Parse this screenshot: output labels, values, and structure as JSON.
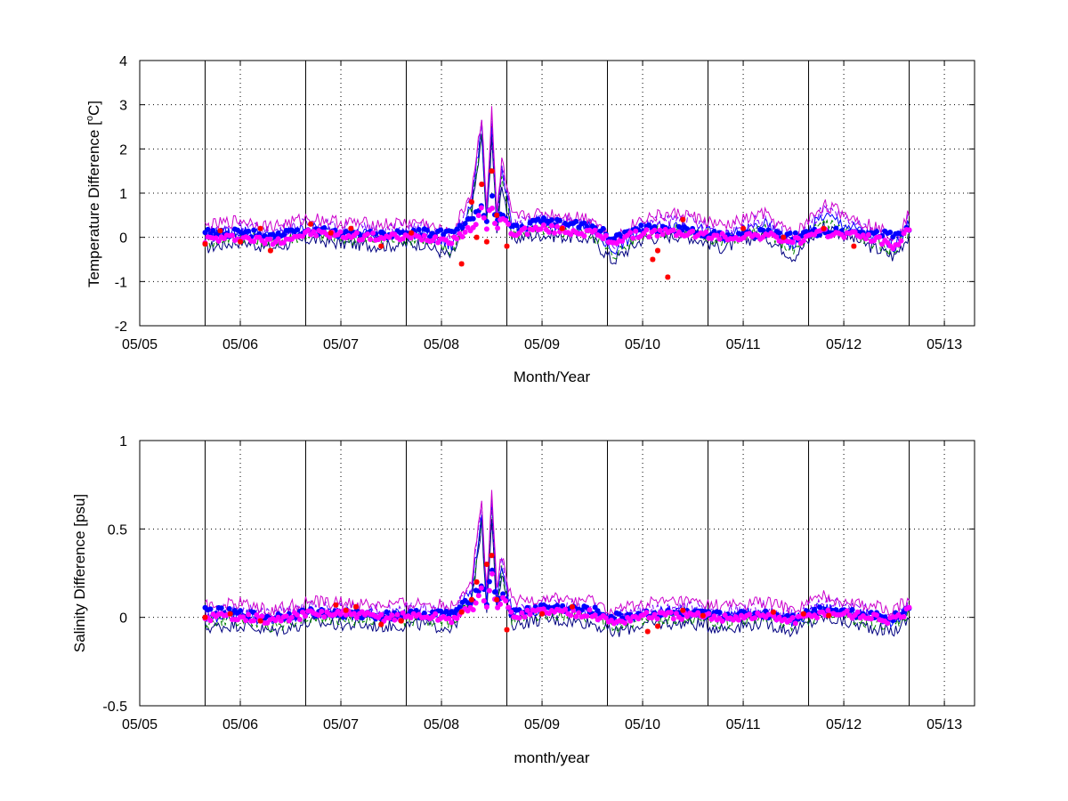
{
  "chart_data": [
    {
      "type": "line",
      "title": "",
      "xlabel": "Month/Year",
      "ylabel": "Temperature Difference [",
      "ylabel_unit_sup": "o",
      "ylabel_unit_tail": "C]",
      "x_tick_labels": [
        "05/05",
        "05/06",
        "05/07",
        "05/08",
        "05/09",
        "05/10",
        "05/11",
        "05/12",
        "05/13"
      ],
      "y_tick_labels": [
        "4",
        "3",
        "2",
        "1",
        "0",
        "-1",
        "-2"
      ],
      "y_ticks": [
        4,
        3,
        2,
        1,
        0,
        -1,
        -2
      ],
      "xlim": [
        2005.0,
        2013.3
      ],
      "ylim": [
        -2,
        4
      ],
      "grid": "dotted",
      "vertical_markers_year": [
        2005.65,
        2006.65,
        2007.65,
        2008.65,
        2009.65,
        2010.65,
        2011.65,
        2012.65
      ],
      "data_range_year": [
        2005.65,
        2012.65
      ],
      "series": [
        {
          "style": "thin-lines",
          "colors": [
            "#000080",
            "#008000",
            "#0000ff",
            "#7f00ff",
            "#cc00cc"
          ],
          "x_year": [
            2005.65,
            2006.0,
            2006.3,
            2006.7,
            2007.0,
            2007.4,
            2007.8,
            2008.1,
            2008.3,
            2008.4,
            2008.45,
            2008.5,
            2008.55,
            2008.6,
            2008.7,
            2009.0,
            2009.5,
            2009.7,
            2010.0,
            2010.4,
            2010.8,
            2011.2,
            2011.5,
            2011.8,
            2012.2,
            2012.5,
            2012.65
          ],
          "y": [
            0.0,
            0.15,
            0.0,
            0.2,
            0.1,
            0.05,
            0.1,
            -0.2,
            0.8,
            2.5,
            0.5,
            2.6,
            0.3,
            1.5,
            0.2,
            0.3,
            0.2,
            -0.3,
            0.2,
            0.3,
            0.0,
            0.3,
            -0.2,
            0.5,
            0.1,
            -0.2,
            0.3
          ]
        },
        {
          "style": "blue-markers",
          "color": "#0000ff",
          "x_year": [
            2005.65,
            2006.0,
            2006.3,
            2006.7,
            2007.0,
            2007.4,
            2007.8,
            2008.1,
            2008.3,
            2008.4,
            2008.45,
            2008.5,
            2008.55,
            2008.6,
            2008.7,
            2009.0,
            2009.5,
            2009.7,
            2010.0,
            2010.4,
            2010.8,
            2011.2,
            2011.5,
            2011.8,
            2012.2,
            2012.5,
            2012.65
          ],
          "y": [
            0.1,
            0.1,
            0.05,
            0.15,
            0.1,
            0.05,
            0.1,
            0.1,
            0.4,
            0.8,
            0.3,
            0.9,
            0.3,
            0.6,
            0.2,
            0.35,
            0.25,
            0.0,
            0.2,
            0.15,
            0.05,
            0.1,
            0.0,
            0.15,
            0.1,
            0.05,
            0.2
          ]
        },
        {
          "style": "magenta-markers",
          "color": "#ff00ff",
          "x_year": [
            2005.65,
            2006.0,
            2006.3,
            2006.7,
            2007.0,
            2007.4,
            2007.8,
            2008.1,
            2008.3,
            2008.4,
            2008.45,
            2008.5,
            2008.55,
            2008.6,
            2008.7,
            2009.0,
            2009.5,
            2009.7,
            2010.0,
            2010.4,
            2010.8,
            2011.2,
            2011.5,
            2011.8,
            2012.2,
            2012.5,
            2012.65
          ],
          "y": [
            -0.05,
            0.0,
            -0.1,
            0.1,
            0.05,
            0.0,
            0.0,
            -0.05,
            0.2,
            0.6,
            0.2,
            0.8,
            0.1,
            0.5,
            0.1,
            0.2,
            0.1,
            -0.1,
            0.1,
            0.1,
            0.0,
            0.05,
            -0.1,
            0.1,
            0.05,
            -0.2,
            0.15
          ]
        },
        {
          "style": "red-asterisks",
          "color": "#ff0000",
          "x_year": [
            2005.65,
            2005.8,
            2006.0,
            2006.2,
            2006.3,
            2006.7,
            2006.9,
            2007.1,
            2007.4,
            2007.7,
            2008.2,
            2008.3,
            2008.35,
            2008.4,
            2008.45,
            2008.5,
            2008.55,
            2008.65,
            2009.2,
            2010.1,
            2010.15,
            2010.25,
            2010.4,
            2011.0,
            2011.4,
            2011.8,
            2012.1
          ],
          "y": [
            -0.15,
            0.15,
            -0.1,
            0.2,
            -0.3,
            0.3,
            0.1,
            0.2,
            -0.2,
            0.1,
            -0.6,
            0.8,
            0.0,
            1.2,
            -0.1,
            1.5,
            0.5,
            -0.2,
            0.2,
            -0.5,
            -0.3,
            -0.9,
            0.4,
            0.2,
            0.0,
            0.2,
            -0.2
          ]
        }
      ]
    },
    {
      "type": "line",
      "title": "",
      "xlabel": "month/year",
      "ylabel": "Salinity Difference [psu]",
      "x_tick_labels": [
        "05/05",
        "05/06",
        "05/07",
        "05/08",
        "05/09",
        "05/10",
        "05/11",
        "05/12",
        "05/13"
      ],
      "y_tick_labels": [
        "1",
        "0.5",
        "0",
        "-0.5"
      ],
      "y_ticks": [
        1,
        0.5,
        0,
        -0.5
      ],
      "xlim": [
        2005.0,
        2013.3
      ],
      "ylim": [
        -0.5,
        1
      ],
      "grid": "dotted",
      "vertical_markers_year": [
        2005.65,
        2006.65,
        2007.65,
        2008.65,
        2009.65,
        2010.65,
        2011.65,
        2012.65
      ],
      "data_range_year": [
        2005.65,
        2012.65
      ],
      "series": [
        {
          "style": "thin-lines",
          "colors": [
            "#000080",
            "#008000",
            "#0000ff",
            "#7f00ff",
            "#cc00cc"
          ],
          "x_year": [
            2005.65,
            2006.0,
            2006.3,
            2006.7,
            2007.0,
            2007.4,
            2007.8,
            2008.1,
            2008.3,
            2008.4,
            2008.45,
            2008.5,
            2008.55,
            2008.6,
            2008.7,
            2009.0,
            2009.5,
            2009.7,
            2010.0,
            2010.4,
            2010.8,
            2011.2,
            2011.5,
            2011.8,
            2012.2,
            2012.5,
            2012.65
          ],
          "y": [
            0.0,
            0.02,
            -0.02,
            0.03,
            0.02,
            0.01,
            0.02,
            0.0,
            0.15,
            0.6,
            0.1,
            0.65,
            0.1,
            0.3,
            0.02,
            0.05,
            0.03,
            -0.03,
            0.02,
            0.03,
            0.0,
            0.03,
            -0.02,
            0.06,
            0.01,
            -0.02,
            0.05
          ]
        },
        {
          "style": "blue-markers",
          "color": "#0000ff",
          "x_year": [
            2005.65,
            2006.0,
            2006.3,
            2006.7,
            2007.0,
            2007.4,
            2007.8,
            2008.1,
            2008.3,
            2008.4,
            2008.45,
            2008.5,
            2008.55,
            2008.6,
            2008.7,
            2009.0,
            2009.5,
            2009.7,
            2010.0,
            2010.4,
            2010.8,
            2011.2,
            2011.5,
            2011.8,
            2012.2,
            2012.5,
            2012.65
          ],
          "y": [
            0.04,
            0.02,
            0.0,
            0.03,
            0.02,
            0.01,
            0.02,
            0.02,
            0.1,
            0.2,
            0.08,
            0.3,
            0.06,
            0.15,
            0.02,
            0.06,
            0.04,
            0.0,
            0.02,
            0.02,
            0.01,
            0.02,
            0.0,
            0.05,
            0.02,
            0.0,
            0.05
          ]
        },
        {
          "style": "magenta-markers",
          "color": "#ff00ff",
          "x_year": [
            2005.65,
            2006.0,
            2006.3,
            2006.7,
            2007.0,
            2007.4,
            2007.8,
            2008.1,
            2008.3,
            2008.4,
            2008.45,
            2008.5,
            2008.55,
            2008.6,
            2008.7,
            2009.0,
            2009.5,
            2009.7,
            2010.0,
            2010.4,
            2010.8,
            2011.2,
            2011.5,
            2011.8,
            2012.2,
            2012.5,
            2012.65
          ],
          "y": [
            0.0,
            0.01,
            -0.02,
            0.02,
            0.02,
            0.0,
            0.01,
            -0.01,
            0.05,
            0.15,
            0.04,
            0.28,
            0.02,
            0.12,
            0.01,
            0.04,
            0.02,
            -0.03,
            0.01,
            0.01,
            0.0,
            0.01,
            -0.02,
            0.03,
            0.01,
            -0.02,
            0.04
          ]
        },
        {
          "style": "red-asterisks",
          "color": "#ff0000",
          "x_year": [
            2005.65,
            2005.9,
            2006.2,
            2006.95,
            2007.05,
            2007.15,
            2007.4,
            2007.6,
            2008.2,
            2008.3,
            2008.35,
            2008.45,
            2008.5,
            2008.55,
            2008.65,
            2009.0,
            2009.3,
            2010.05,
            2010.15,
            2010.4,
            2010.6,
            2011.3,
            2011.6,
            2011.85
          ],
          "y": [
            0.0,
            0.02,
            -0.02,
            0.07,
            0.04,
            0.06,
            -0.04,
            -0.02,
            0.03,
            0.1,
            0.2,
            0.3,
            0.35,
            0.1,
            -0.07,
            0.02,
            0.06,
            -0.08,
            -0.05,
            0.04,
            0.01,
            0.03,
            0.02,
            0.01
          ]
        }
      ]
    }
  ]
}
